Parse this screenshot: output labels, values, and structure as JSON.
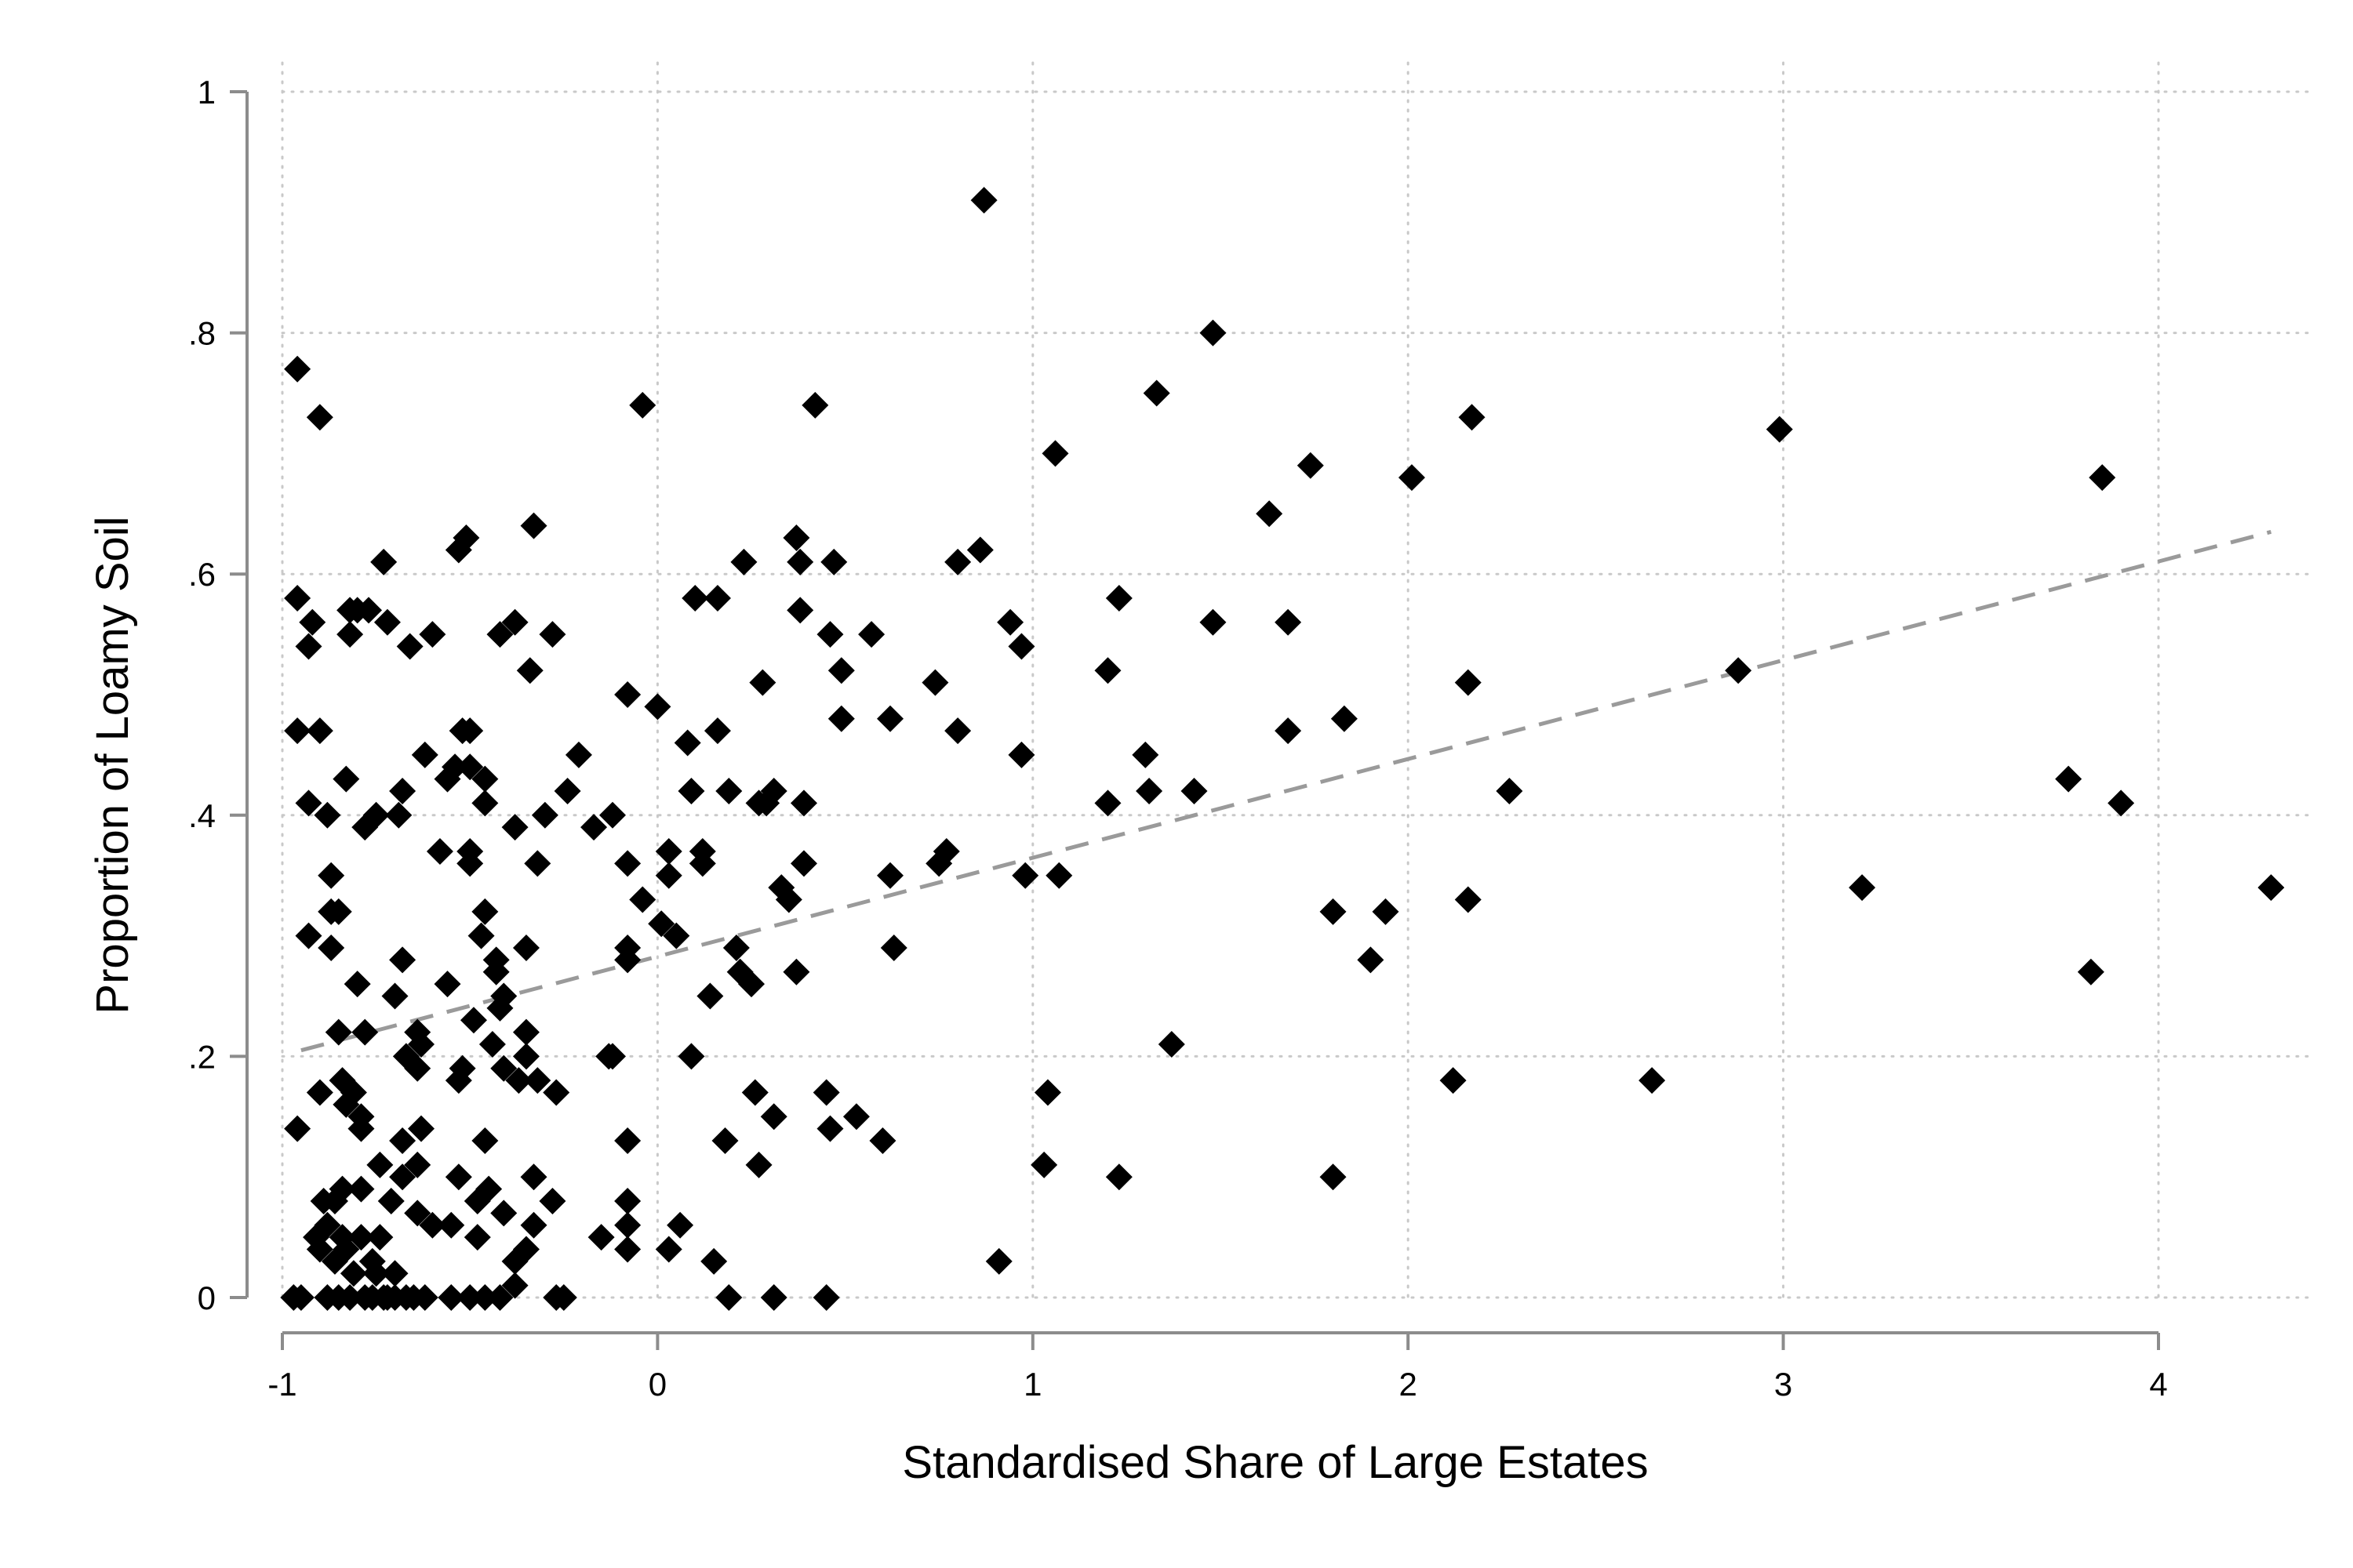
{
  "chart_data": {
    "type": "scatter",
    "title": "",
    "xlabel": "Standardised Share of Large Estates",
    "ylabel": "Proportion of Loamy Soil",
    "xlim": [
      -1,
      4.4
    ],
    "ylim": [
      0,
      1
    ],
    "grid": true,
    "xticks": [
      -1,
      0,
      1,
      2,
      3,
      4
    ],
    "xtick_labels": [
      "-1",
      "0",
      "1",
      "2",
      "3",
      "4"
    ],
    "yticks": [
      0,
      0.2,
      0.4,
      0.6,
      0.8,
      1
    ],
    "ytick_labels": [
      "0",
      ".2",
      ".4",
      ".6",
      ".8",
      "1"
    ],
    "marker": "diamond",
    "marker_color": "#000000",
    "fit_line": {
      "style": "dashed",
      "color": "#9a9a9a",
      "x": [
        -0.95,
        4.3
      ],
      "y": [
        0.205,
        0.635
      ]
    },
    "points": [
      [
        -0.96,
        0.77
      ],
      [
        -0.9,
        0.73
      ],
      [
        -0.04,
        0.74
      ],
      [
        0.42,
        0.74
      ],
      [
        0.87,
        0.91
      ],
      [
        1.06,
        0.7
      ],
      [
        1.33,
        0.75
      ],
      [
        1.48,
        0.8
      ],
      [
        1.74,
        0.69
      ],
      [
        2.01,
        0.68
      ],
      [
        2.17,
        0.73
      ],
      [
        2.99,
        0.72
      ],
      [
        3.85,
        0.68
      ],
      [
        3.76,
        0.43
      ],
      [
        3.9,
        0.41
      ],
      [
        4.3,
        0.34
      ],
      [
        3.82,
        0.27
      ],
      [
        3.21,
        0.34
      ],
      [
        2.88,
        0.52
      ],
      [
        2.65,
        0.18
      ],
      [
        2.27,
        0.42
      ],
      [
        2.16,
        0.51
      ],
      [
        2.16,
        0.33
      ],
      [
        2.12,
        0.18
      ],
      [
        1.94,
        0.32
      ],
      [
        1.9,
        0.28
      ],
      [
        1.83,
        0.48
      ],
      [
        1.8,
        0.32
      ],
      [
        1.8,
        0.1
      ],
      [
        1.68,
        0.56
      ],
      [
        1.68,
        0.47
      ],
      [
        1.63,
        0.65
      ],
      [
        1.48,
        0.56
      ],
      [
        1.43,
        0.42
      ],
      [
        1.37,
        0.21
      ],
      [
        1.3,
        0.45
      ],
      [
        1.31,
        0.42
      ],
      [
        1.23,
        0.58
      ],
      [
        1.2,
        0.52
      ],
      [
        1.2,
        0.41
      ],
      [
        1.23,
        0.1
      ],
      [
        1.07,
        0.35
      ],
      [
        1.04,
        0.17
      ],
      [
        1.03,
        0.11
      ],
      [
        0.98,
        0.35
      ],
      [
        0.97,
        0.45
      ],
      [
        0.97,
        0.54
      ],
      [
        0.94,
        0.56
      ],
      [
        0.91,
        0.03
      ],
      [
        0.86,
        0.62
      ],
      [
        0.8,
        0.61
      ],
      [
        0.8,
        0.47
      ],
      [
        0.77,
        0.37
      ],
      [
        0.75,
        0.36
      ],
      [
        0.74,
        0.51
      ],
      [
        0.62,
        0.48
      ],
      [
        0.62,
        0.35
      ],
      [
        0.63,
        0.29
      ],
      [
        0.6,
        0.13
      ],
      [
        0.53,
        0.15
      ],
      [
        0.57,
        0.55
      ],
      [
        0.49,
        0.52
      ],
      [
        0.49,
        0.48
      ],
      [
        0.47,
        0.61
      ],
      [
        0.46,
        0.55
      ],
      [
        0.46,
        0.14
      ],
      [
        0.45,
        0.17
      ],
      [
        0.45,
        0.0
      ],
      [
        0.39,
        0.41
      ],
      [
        0.39,
        0.36
      ],
      [
        0.37,
        0.63
      ],
      [
        0.38,
        0.61
      ],
      [
        0.38,
        0.57
      ],
      [
        0.37,
        0.27
      ],
      [
        0.35,
        0.33
      ],
      [
        0.33,
        0.34
      ],
      [
        0.31,
        0.42
      ],
      [
        0.29,
        0.41
      ],
      [
        0.31,
        0.15
      ],
      [
        0.31,
        0.0
      ],
      [
        0.28,
        0.51
      ],
      [
        0.27,
        0.41
      ],
      [
        0.26,
        0.17
      ],
      [
        0.27,
        0.11
      ],
      [
        0.25,
        0.26
      ],
      [
        0.23,
        0.61
      ],
      [
        0.21,
        0.29
      ],
      [
        0.22,
        0.27
      ],
      [
        0.19,
        0.42
      ],
      [
        0.18,
        0.13
      ],
      [
        0.19,
        0.0
      ],
      [
        0.16,
        0.58
      ],
      [
        0.16,
        0.47
      ],
      [
        0.12,
        0.37
      ],
      [
        0.12,
        0.36
      ],
      [
        0.14,
        0.25
      ],
      [
        0.15,
        0.03
      ],
      [
        0.1,
        0.58
      ],
      [
        0.09,
        0.42
      ],
      [
        0.08,
        0.46
      ],
      [
        0.09,
        0.2
      ],
      [
        0.05,
        0.3
      ],
      [
        0.03,
        0.37
      ],
      [
        0.03,
        0.35
      ],
      [
        0.06,
        0.06
      ],
      [
        0.03,
        0.04
      ],
      [
        0.0,
        0.49
      ],
      [
        0.01,
        0.31
      ],
      [
        -0.04,
        0.33
      ],
      [
        -0.08,
        0.5
      ],
      [
        -0.08,
        0.36
      ],
      [
        -0.08,
        0.29
      ],
      [
        -0.08,
        0.28
      ],
      [
        -0.08,
        0.13
      ],
      [
        -0.08,
        0.08
      ],
      [
        -0.08,
        0.06
      ],
      [
        -0.08,
        0.04
      ],
      [
        -0.12,
        0.4
      ],
      [
        -0.12,
        0.2
      ],
      [
        -0.13,
        0.2
      ],
      [
        -0.15,
        0.05
      ],
      [
        -0.17,
        0.39
      ],
      [
        -0.21,
        0.45
      ],
      [
        -0.24,
        0.42
      ],
      [
        -0.25,
        0.0
      ],
      [
        -0.27,
        0.0
      ],
      [
        -0.27,
        0.17
      ],
      [
        -0.28,
        0.08
      ],
      [
        -0.3,
        0.4
      ],
      [
        -0.28,
        0.55
      ],
      [
        -0.32,
        0.36
      ],
      [
        -0.32,
        0.18
      ],
      [
        -0.33,
        0.06
      ],
      [
        -0.33,
        0.1
      ],
      [
        -0.35,
        0.04
      ],
      [
        -0.33,
        0.64
      ],
      [
        -0.34,
        0.52
      ],
      [
        -0.35,
        0.29
      ],
      [
        -0.35,
        0.2
      ],
      [
        -0.35,
        0.22
      ],
      [
        -0.37,
        0.18
      ],
      [
        -0.38,
        0.03
      ],
      [
        -0.38,
        0.39
      ],
      [
        -0.38,
        0.56
      ],
      [
        -0.38,
        0.01
      ],
      [
        -0.41,
        0.25
      ],
      [
        -0.41,
        0.19
      ],
      [
        -0.41,
        0.07
      ],
      [
        -0.42,
        0.0
      ],
      [
        -0.42,
        0.55
      ],
      [
        -0.42,
        0.24
      ],
      [
        -0.43,
        0.27
      ],
      [
        -0.43,
        0.28
      ],
      [
        -0.44,
        0.21
      ],
      [
        -0.45,
        0.09
      ],
      [
        -0.46,
        0.13
      ],
      [
        -0.46,
        0.32
      ],
      [
        -0.46,
        0.41
      ],
      [
        -0.46,
        0.43
      ],
      [
        -0.46,
        0.0
      ],
      [
        -0.47,
        0.3
      ],
      [
        -0.48,
        0.08
      ],
      [
        -0.48,
        0.05
      ],
      [
        -0.49,
        0.23
      ],
      [
        -0.5,
        0.36
      ],
      [
        -0.5,
        0.37
      ],
      [
        -0.5,
        0.44
      ],
      [
        -0.5,
        0.47
      ],
      [
        -0.5,
        0.0
      ],
      [
        -0.51,
        0.63
      ],
      [
        -0.52,
        0.19
      ],
      [
        -0.52,
        0.47
      ],
      [
        -0.53,
        0.62
      ],
      [
        -0.53,
        0.18
      ],
      [
        -0.53,
        0.1
      ],
      [
        -0.54,
        0.44
      ],
      [
        -0.55,
        0.0
      ],
      [
        -0.55,
        0.06
      ],
      [
        -0.56,
        0.26
      ],
      [
        -0.56,
        0.43
      ],
      [
        -0.58,
        0.37
      ],
      [
        -0.6,
        0.06
      ],
      [
        -0.6,
        0.55
      ],
      [
        -0.62,
        0.45
      ],
      [
        -0.63,
        0.14
      ],
      [
        -0.63,
        0.21
      ],
      [
        -0.64,
        0.11
      ],
      [
        -0.64,
        0.19
      ],
      [
        -0.64,
        0.07
      ],
      [
        -0.64,
        0.22
      ],
      [
        -0.65,
        0.0
      ],
      [
        -0.66,
        0.54
      ],
      [
        -0.67,
        0.2
      ],
      [
        -0.68,
        0.42
      ],
      [
        -0.68,
        0.1
      ],
      [
        -0.68,
        0.13
      ],
      [
        -0.68,
        0.28
      ],
      [
        -0.69,
        0.4
      ],
      [
        -0.7,
        0.02
      ],
      [
        -0.7,
        0.25
      ],
      [
        -0.71,
        0.08
      ],
      [
        -0.72,
        0.56
      ],
      [
        -0.73,
        0.61
      ],
      [
        -0.73,
        0.0
      ],
      [
        -0.74,
        0.11
      ],
      [
        -0.75,
        0.4
      ],
      [
        -0.76,
        0.0
      ],
      [
        -0.77,
        0.57
      ],
      [
        -0.78,
        0.39
      ],
      [
        -0.78,
        0.22
      ],
      [
        -0.78,
        0.0
      ],
      [
        -0.79,
        0.05
      ],
      [
        -0.79,
        0.09
      ],
      [
        -0.79,
        0.15
      ],
      [
        -0.79,
        0.14
      ],
      [
        -0.8,
        0.26
      ],
      [
        -0.81,
        0.02
      ],
      [
        -0.81,
        0.17
      ],
      [
        -0.82,
        0.55
      ],
      [
        -0.82,
        0.0
      ],
      [
        -0.82,
        0.57
      ],
      [
        -0.83,
        0.43
      ],
      [
        -0.83,
        0.04
      ],
      [
        -0.84,
        0.09
      ],
      [
        -0.84,
        0.18
      ],
      [
        -0.85,
        0.32
      ],
      [
        -0.85,
        0.22
      ],
      [
        -0.85,
        0.0
      ],
      [
        -0.86,
        0.08
      ],
      [
        -0.86,
        0.03
      ],
      [
        -0.87,
        0.29
      ],
      [
        -0.87,
        0.35
      ],
      [
        -0.88,
        0.4
      ],
      [
        -0.88,
        0.0
      ],
      [
        -0.88,
        0.06
      ],
      [
        -0.89,
        0.08
      ],
      [
        -0.9,
        0.17
      ],
      [
        -0.9,
        0.47
      ],
      [
        -0.9,
        0.04
      ],
      [
        -0.91,
        0.05
      ],
      [
        -0.92,
        0.56
      ],
      [
        -0.93,
        0.54
      ],
      [
        -0.93,
        0.41
      ],
      [
        -0.93,
        0.3
      ],
      [
        -0.95,
        0.0
      ],
      [
        -0.96,
        0.47
      ],
      [
        -0.96,
        0.58
      ],
      [
        -0.96,
        0.14
      ],
      [
        -0.97,
        0.0
      ],
      [
        -0.87,
        0.32
      ],
      [
        -0.84,
        0.05
      ],
      [
        -0.83,
        0.16
      ],
      [
        -0.8,
        0.57
      ],
      [
        -0.76,
        0.03
      ],
      [
        -0.75,
        0.02
      ],
      [
        -0.74,
        0.05
      ],
      [
        -0.72,
        0.0
      ],
      [
        -0.7,
        0.0
      ],
      [
        -0.67,
        0.0
      ],
      [
        -0.62,
        0.0
      ]
    ]
  }
}
